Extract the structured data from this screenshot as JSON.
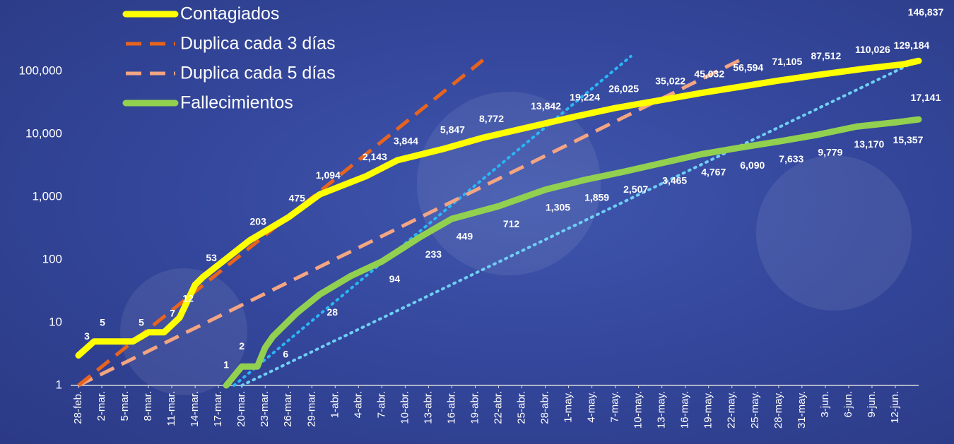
{
  "chart_data": {
    "type": "line",
    "log_y": true,
    "grid": false,
    "legend": "upper-left",
    "xlim": [
      -1,
      109
    ],
    "ylim": [
      1,
      1000000
    ],
    "yticks": [
      1,
      10,
      100,
      {
        "value": 1000,
        "label": "1,000"
      },
      {
        "value": 10000,
        "label": "10,000"
      },
      {
        "value": 100000,
        "label": "100,000"
      }
    ],
    "xticks": [
      {
        "value": 0,
        "label": "28-feb."
      },
      {
        "value": 3,
        "label": "2-mar."
      },
      {
        "value": 6,
        "label": "5-mar."
      },
      {
        "value": 9,
        "label": "8-mar."
      },
      {
        "value": 12,
        "label": "11-mar."
      },
      {
        "value": 15,
        "label": "14-mar."
      },
      {
        "value": 18,
        "label": "17-mar."
      },
      {
        "value": 21,
        "label": "20-mar."
      },
      {
        "value": 24,
        "label": "23-mar."
      },
      {
        "value": 27,
        "label": "26-mar."
      },
      {
        "value": 30,
        "label": "29-mar."
      },
      {
        "value": 33,
        "label": "1-abr."
      },
      {
        "value": 36,
        "label": "4-abr."
      },
      {
        "value": 39,
        "label": "7-abr."
      },
      {
        "value": 42,
        "label": "10-abr."
      },
      {
        "value": 45,
        "label": "13-abr."
      },
      {
        "value": 48,
        "label": "16-abr."
      },
      {
        "value": 51,
        "label": "19-abr."
      },
      {
        "value": 54,
        "label": "22-abr."
      },
      {
        "value": 57,
        "label": "25-abr."
      },
      {
        "value": 60,
        "label": "28-abr."
      },
      {
        "value": 63,
        "label": "1-may."
      },
      {
        "value": 66,
        "label": "4-may."
      },
      {
        "value": 69,
        "label": "7-may."
      },
      {
        "value": 72,
        "label": "10-may."
      },
      {
        "value": 75,
        "label": "13-may."
      },
      {
        "value": 78,
        "label": "16-may."
      },
      {
        "value": 81,
        "label": "19-may."
      },
      {
        "value": 84,
        "label": "22-may."
      },
      {
        "value": 87,
        "label": "25-may."
      },
      {
        "value": 90,
        "label": "28-may."
      },
      {
        "value": 93,
        "label": "31-may."
      },
      {
        "value": 96,
        "label": "3-jun."
      },
      {
        "value": 99,
        "label": "6-jun."
      },
      {
        "value": 102,
        "label": "9-jun."
      },
      {
        "value": 105,
        "label": "12-jun."
      }
    ],
    "series": [
      {
        "name": "Contagiados",
        "color": "#ffff00",
        "style": "solid",
        "x": [
          0,
          2,
          7,
          9,
          11,
          13,
          15,
          16,
          22,
          27,
          31,
          37,
          41,
          47,
          52,
          59,
          64,
          69,
          75,
          80,
          85,
          90,
          95,
          101,
          106,
          108
        ],
        "values": [
          3,
          5,
          5,
          7,
          7,
          12,
          40,
          53,
          203,
          475,
          1094,
          2143,
          3844,
          5847,
          8772,
          13842,
          19224,
          26025,
          35022,
          45032,
          56594,
          71105,
          87512,
          110026,
          129184,
          146837
        ],
        "value_labels": [
          "3",
          "5",
          "5",
          null,
          "7",
          "12",
          null,
          "53",
          "203",
          "475",
          "1,094",
          "2,143",
          "3,844",
          "5,847",
          "8,772",
          "13,842",
          "19,224",
          "26,025",
          "35,022",
          "45,032",
          "56,594",
          "71,105",
          "87,512",
          "110,026",
          "129,184",
          "146,837"
        ]
      },
      {
        "name": "Duplica cada 3 días",
        "color": "#e8641e",
        "style": "dash",
        "x": [
          0,
          52
        ],
        "values": [
          1,
          151000
        ]
      },
      {
        "name": "Duplica cada 5 días",
        "color": "#f4a582",
        "style": "dash",
        "x": [
          0,
          85
        ],
        "values": [
          1,
          150000
        ]
      },
      {
        "name": "Fallecimientos",
        "color": "#92d050",
        "style": "solid",
        "x": [
          19,
          21,
          23,
          24,
          25,
          28,
          31,
          35,
          39,
          44,
          48,
          54,
          60,
          65,
          70,
          75,
          80,
          85,
          90,
          95,
          100,
          105,
          108
        ],
        "values": [
          1,
          2,
          2,
          4,
          6,
          14,
          28,
          55,
          94,
          233,
          449,
          712,
          1305,
          1859,
          2507,
          3465,
          4767,
          6090,
          7633,
          9779,
          13170,
          15357,
          17141
        ],
        "value_labels": [
          "1",
          "2",
          null,
          null,
          "6",
          null,
          "28",
          null,
          "94",
          "233",
          "449",
          "712",
          "1,305",
          "1,859",
          "2,507",
          "3,465",
          "4,767",
          "6,090",
          "7,633",
          "9,779",
          "13,170",
          "15,357",
          "17,141"
        ]
      },
      {
        "color": "#29b6f6",
        "style": "dot",
        "x": [
          20,
          71
        ],
        "values": [
          1,
          173000
        ]
      },
      {
        "color": "#6fd0f7",
        "style": "dot",
        "x": [
          21,
          108
        ],
        "values": [
          1,
          151000
        ]
      }
    ]
  }
}
